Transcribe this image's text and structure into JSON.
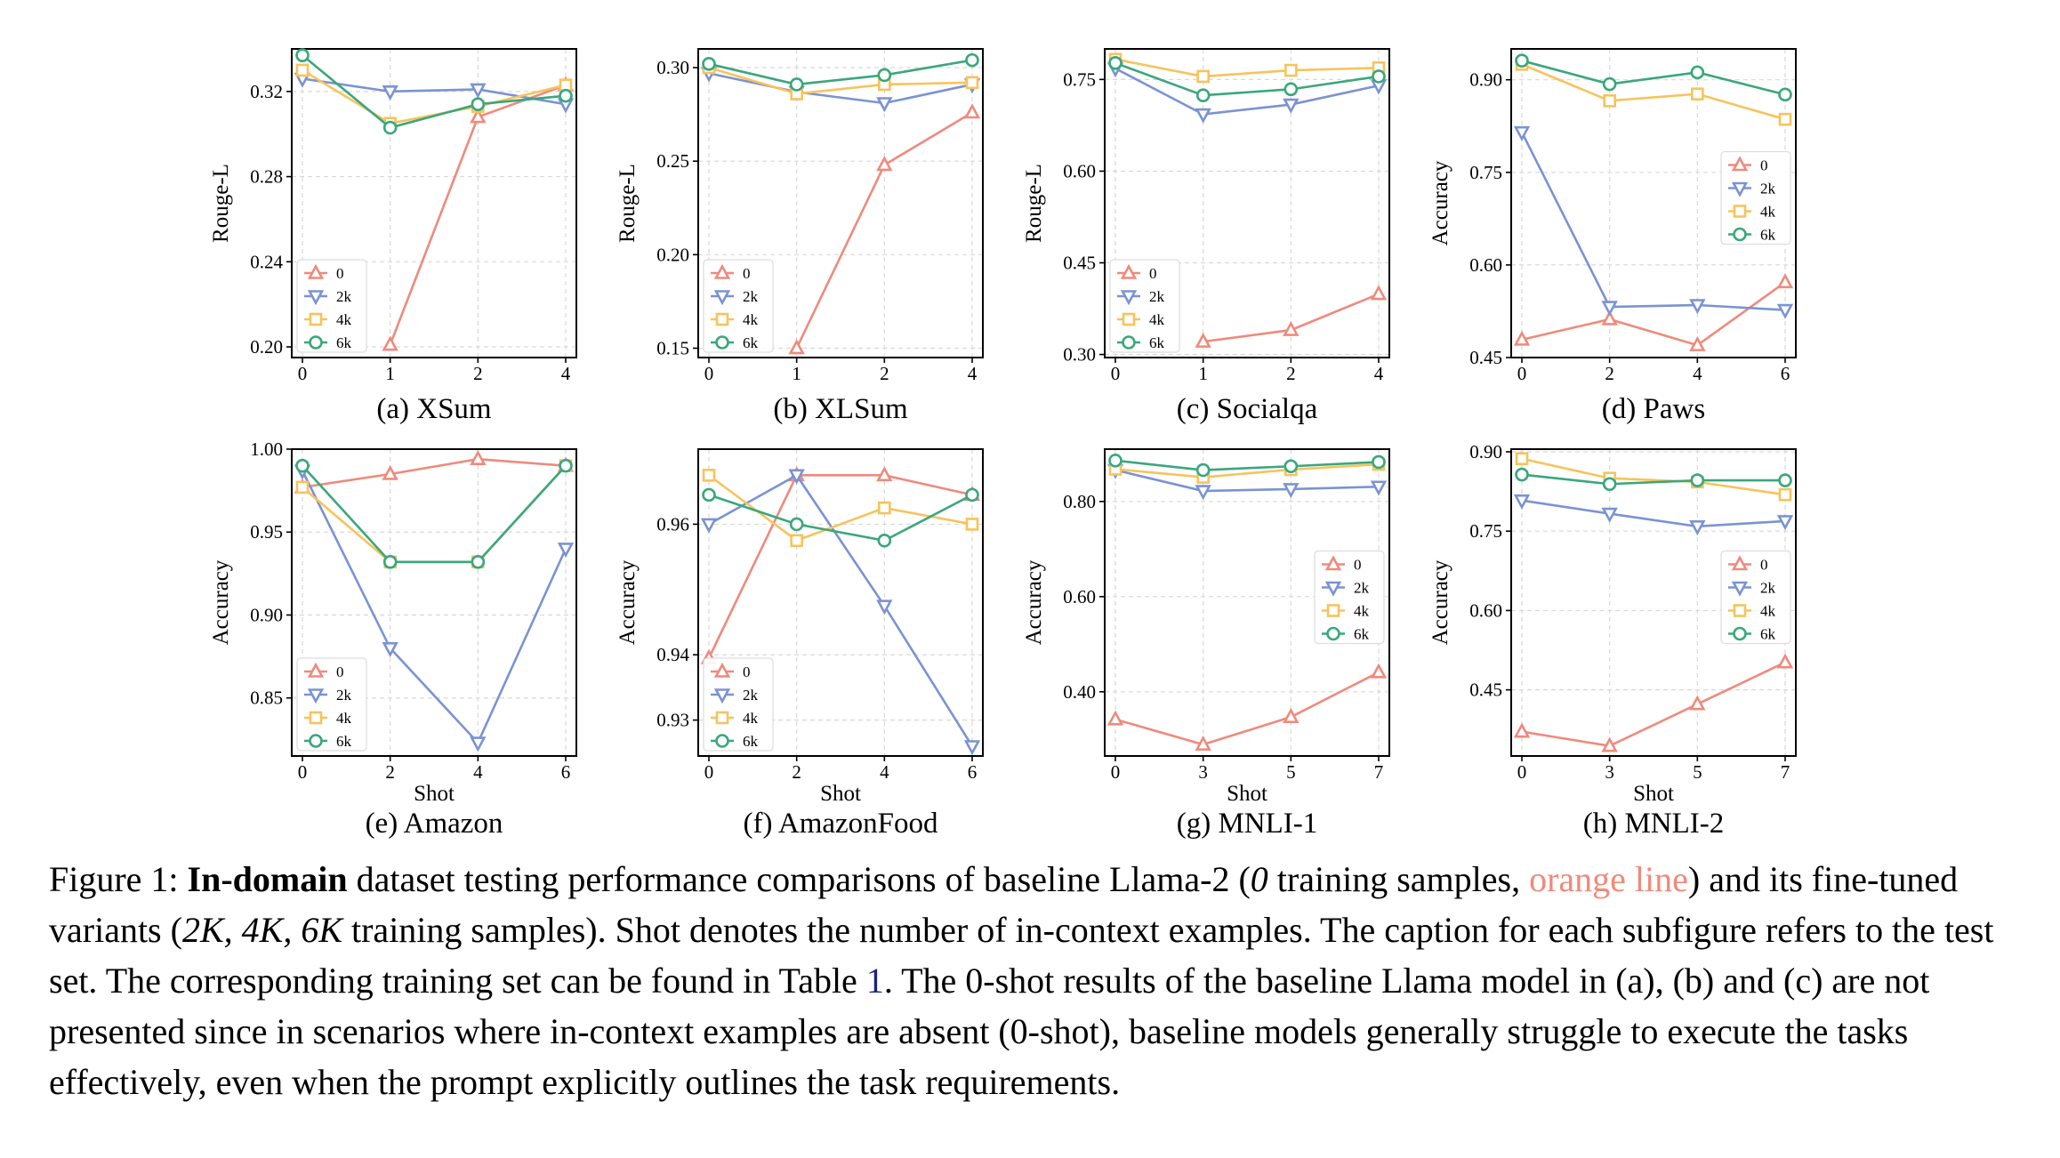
{
  "colors": {
    "0": "#ef8a7c",
    "2k": "#7a93d2",
    "4k": "#f7c35c",
    "6k": "#3aa77c"
  },
  "chart_data": [
    {
      "type": "line",
      "caption": "(a) XSum",
      "xlabel": "",
      "ylabel": "Rouge-L",
      "categories": [
        "0",
        "1",
        "2",
        "4"
      ],
      "ylim": [
        0.195,
        0.34
      ],
      "yticks": [
        0.2,
        0.24,
        0.28,
        0.32
      ],
      "ytick_labels": [
        "0.20",
        "0.24",
        "0.28",
        "0.32"
      ],
      "legend": "lower-left",
      "series": [
        {
          "name": "0",
          "values": [
            null,
            0.201,
            0.308,
            0.323
          ]
        },
        {
          "name": "2k",
          "values": [
            0.326,
            0.32,
            0.321,
            0.314
          ]
        },
        {
          "name": "4k",
          "values": [
            0.33,
            0.305,
            0.313,
            0.323
          ]
        },
        {
          "name": "6k",
          "values": [
            0.337,
            0.303,
            0.314,
            0.318
          ]
        }
      ]
    },
    {
      "type": "line",
      "caption": "(b) XLSum",
      "xlabel": "",
      "ylabel": "Rouge-L",
      "categories": [
        "0",
        "1",
        "2",
        "4"
      ],
      "ylim": [
        0.145,
        0.31
      ],
      "yticks": [
        0.15,
        0.2,
        0.25,
        0.3
      ],
      "ytick_labels": [
        "0.15",
        "0.20",
        "0.25",
        "0.30"
      ],
      "legend": "lower-left",
      "series": [
        {
          "name": "0",
          "values": [
            null,
            0.15,
            0.248,
            0.276
          ]
        },
        {
          "name": "2k",
          "values": [
            0.297,
            0.287,
            0.281,
            0.291
          ]
        },
        {
          "name": "4k",
          "values": [
            0.3,
            0.286,
            0.291,
            0.292
          ]
        },
        {
          "name": "6k",
          "values": [
            0.302,
            0.291,
            0.296,
            0.304
          ]
        }
      ]
    },
    {
      "type": "line",
      "caption": "(c) Socialqa",
      "xlabel": "",
      "ylabel": "Rouge-L",
      "categories": [
        "0",
        "1",
        "2",
        "4"
      ],
      "ylim": [
        0.295,
        0.8
      ],
      "yticks": [
        0.3,
        0.45,
        0.6,
        0.75
      ],
      "ytick_labels": [
        "0.30",
        "0.45",
        "0.60",
        "0.75"
      ],
      "legend": "lower-left",
      "series": [
        {
          "name": "0",
          "values": [
            null,
            0.321,
            0.34,
            0.399
          ]
        },
        {
          "name": "2k",
          "values": [
            0.768,
            0.693,
            0.709,
            0.74
          ]
        },
        {
          "name": "4k",
          "values": [
            0.783,
            0.755,
            0.765,
            0.769
          ]
        },
        {
          "name": "6k",
          "values": [
            0.777,
            0.724,
            0.734,
            0.755
          ]
        }
      ]
    },
    {
      "type": "line",
      "caption": "(d) Paws",
      "xlabel": "",
      "ylabel": "Accuracy",
      "categories": [
        "0",
        "2",
        "4",
        "6"
      ],
      "ylim": [
        0.45,
        0.95
      ],
      "yticks": [
        0.45,
        0.6,
        0.75,
        0.9
      ],
      "ytick_labels": [
        "0.45",
        "0.60",
        "0.75",
        "0.90"
      ],
      "legend": "center-right",
      "series": [
        {
          "name": "0",
          "values": [
            0.479,
            0.512,
            0.47,
            0.572
          ]
        },
        {
          "name": "2k",
          "values": [
            0.815,
            0.532,
            0.535,
            0.527
          ]
        },
        {
          "name": "4k",
          "values": [
            0.925,
            0.866,
            0.877,
            0.836
          ]
        },
        {
          "name": "6k",
          "values": [
            0.931,
            0.893,
            0.912,
            0.876
          ]
        }
      ]
    },
    {
      "type": "line",
      "caption": "(e) Amazon",
      "xlabel": "Shot",
      "ylabel": "Accuracy",
      "categories": [
        "0",
        "2",
        "4",
        "6"
      ],
      "ylim": [
        0.815,
        1.0
      ],
      "yticks": [
        0.85,
        0.9,
        0.95,
        1.0
      ],
      "ytick_labels": [
        "0.85",
        "0.90",
        "0.95",
        "1.00"
      ],
      "legend": "lower-left",
      "series": [
        {
          "name": "0",
          "values": [
            0.977,
            0.985,
            0.994,
            0.99
          ]
        },
        {
          "name": "2k",
          "values": [
            0.987,
            0.88,
            0.823,
            0.94
          ]
        },
        {
          "name": "4k",
          "values": [
            0.977,
            0.932,
            0.932,
            0.99
          ]
        },
        {
          "name": "6k",
          "values": [
            0.99,
            0.932,
            0.932,
            0.99
          ]
        }
      ]
    },
    {
      "type": "line",
      "caption": "(f) AmazonFood",
      "xlabel": "Shot",
      "ylabel": "Accuracy",
      "categories": [
        "0",
        "2",
        "4",
        "6"
      ],
      "ylim": [
        0.9245,
        0.9715
      ],
      "yticks": [
        0.93,
        0.94,
        0.96
      ],
      "ytick_labels": [
        "0.93",
        "0.94",
        "0.96"
      ],
      "legend": "lower-left",
      "series": [
        {
          "name": "0",
          "values": [
            0.9395,
            0.9675,
            0.9675,
            0.9645
          ]
        },
        {
          "name": "2k",
          "values": [
            0.96,
            0.9675,
            0.9475,
            0.926
          ]
        },
        {
          "name": "4k",
          "values": [
            0.9675,
            0.9575,
            0.9625,
            0.96
          ]
        },
        {
          "name": "6k",
          "values": [
            0.9645,
            0.96,
            0.9575,
            0.9645
          ]
        }
      ]
    },
    {
      "type": "line",
      "caption": "(g) MNLI-1",
      "xlabel": "Shot",
      "ylabel": "Accuracy",
      "categories": [
        "0",
        "3",
        "5",
        "7"
      ],
      "ylim": [
        0.265,
        0.91
      ],
      "yticks": [
        0.4,
        0.6,
        0.8
      ],
      "ytick_labels": [
        "0.40",
        "0.60",
        "0.80"
      ],
      "legend": "center-right",
      "series": [
        {
          "name": "0",
          "values": [
            0.342,
            0.289,
            0.347,
            0.441
          ]
        },
        {
          "name": "2k",
          "values": [
            0.866,
            0.822,
            0.826,
            0.831
          ]
        },
        {
          "name": "4k",
          "values": [
            0.868,
            0.851,
            0.867,
            0.878
          ]
        },
        {
          "name": "6k",
          "values": [
            0.886,
            0.866,
            0.874,
            0.883
          ]
        }
      ]
    },
    {
      "type": "line",
      "caption": "(h) MNLI-2",
      "xlabel": "Shot",
      "ylabel": "Accuracy",
      "categories": [
        "0",
        "3",
        "5",
        "7"
      ],
      "ylim": [
        0.325,
        0.905
      ],
      "yticks": [
        0.45,
        0.6,
        0.75,
        0.9
      ],
      "ytick_labels": [
        "0.45",
        "0.60",
        "0.75",
        "0.90"
      ],
      "legend": "center-right",
      "series": [
        {
          "name": "0",
          "values": [
            0.371,
            0.344,
            0.423,
            0.502
          ]
        },
        {
          "name": "2k",
          "values": [
            0.808,
            0.783,
            0.759,
            0.769
          ]
        },
        {
          "name": "4k",
          "values": [
            0.887,
            0.85,
            0.843,
            0.819
          ]
        },
        {
          "name": "6k",
          "values": [
            0.857,
            0.839,
            0.846,
            0.846
          ]
        }
      ]
    }
  ],
  "caption": {
    "figure_label": "Figure 1:",
    "bold_text": "In-domain",
    "text_1": " dataset testing performance comparisons of baseline Llama-2 (",
    "math_0": "0",
    "text_2": " training samples, ",
    "orange_text": "orange line",
    "text_3": ") and its fine-tuned variants (",
    "math_variants": "2K, 4K, 6K",
    "text_4": " training samples). Shot denotes the number of in-context examples. The caption for each subfigure refers to the test set. The corresponding training set can be found in Table ",
    "table_ref": "1",
    "text_5": ". The 0-shot results of the baseline Llama model in (a), (b) and (c) are not presented since in scenarios where in-context examples are absent (0-shot), baseline models generally struggle to execute the tasks effectively, even when the prompt explicitly outlines the task requirements."
  }
}
